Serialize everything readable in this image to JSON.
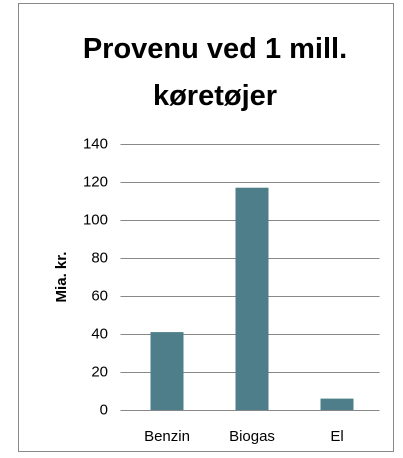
{
  "chart_data": {
    "type": "bar",
    "title": "Provenu ved 1 mill. køretøjer",
    "ylabel": "Mia. kr.",
    "categories": [
      "Benzin",
      "Biogas",
      "El"
    ],
    "values": [
      41,
      117,
      6
    ],
    "color": "#4f7e8b",
    "ylim": [
      0,
      140
    ],
    "yticks": [
      0,
      20,
      40,
      60,
      80,
      100,
      120,
      140
    ],
    "grid": true
  }
}
